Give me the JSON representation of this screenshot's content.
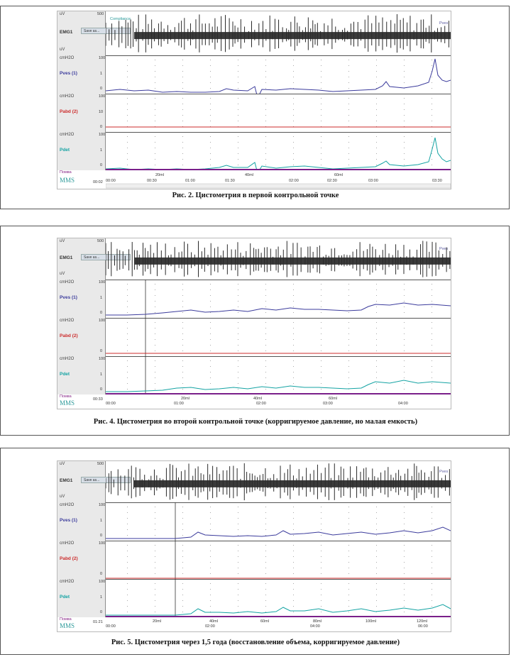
{
  "figures": [
    {
      "caption": "Рис. 2. Цистометрия в первой контрольной точке",
      "emg": {
        "label": "EMG1",
        "top_value": "500",
        "unit_top": "uV",
        "unit_bottom": "uV",
        "save_button": "Save as...",
        "tag": "Compliance",
        "tag_right": "Pves"
      },
      "channels": [
        {
          "name": "Pves (1)",
          "unit": "cmH2O",
          "ticks": [
            "100",
            "1",
            "0"
          ],
          "color": "#3b3b9c"
        },
        {
          "name": "Pabd (2)",
          "unit": "cmH2O",
          "ticks": [
            "100",
            "10",
            "0"
          ],
          "color": "#cc2b2b"
        },
        {
          "name": "Pdet",
          "unit": "cmH2O",
          "ticks": [
            "100",
            "1",
            "0"
          ],
          "color": "#14a3a3"
        }
      ],
      "pomva_label": "Помва",
      "logo": "MMS",
      "elapsed": "00:02",
      "start_time": "00:00",
      "volume_marks": [
        "20ml",
        "40ml",
        "60ml"
      ],
      "time_marks": [
        "00:30",
        "01:00",
        "01:30",
        "02:00",
        "02:30",
        "03:00",
        "03:30"
      ]
    },
    {
      "caption": "Рис. 4. Цистометрия во второй контрольной точке (корригируемое давление, но малая емкость)",
      "emg": {
        "label": "EMG1",
        "top_value": "500",
        "unit_top": "uV",
        "unit_bottom": "uV",
        "save_button": "Save as...",
        "tag": "",
        "tag_right": "Pves"
      },
      "channels": [
        {
          "name": "Pves (1)",
          "unit": "cmH2O",
          "ticks": [
            "100",
            "1",
            "0"
          ],
          "color": "#3b3b9c"
        },
        {
          "name": "Pabd (2)",
          "unit": "cmH2O",
          "ticks": [
            "100",
            "",
            "0"
          ],
          "color": "#cc2b2b"
        },
        {
          "name": "Pdet",
          "unit": "cmH2O",
          "ticks": [
            "100",
            "1",
            "0"
          ],
          "color": "#14a3a3"
        }
      ],
      "pomva_label": "Помва",
      "logo": "MMS",
      "elapsed": "00:33",
      "start_time": "00:00",
      "volume_marks": [
        "20ml",
        "40ml",
        "60ml"
      ],
      "time_marks": [
        "01:00",
        "02:00",
        "03:00",
        "04:00"
      ]
    },
    {
      "caption": "Рис. 5. Цистометрия через 1,5 года (восстановление объема, корригируемое давление)",
      "emg": {
        "label": "EMG1",
        "top_value": "500",
        "unit_top": "uV",
        "unit_bottom": "uV",
        "save_button": "Save as...",
        "tag": "",
        "tag_right": "Pves"
      },
      "channels": [
        {
          "name": "Pves (1)",
          "unit": "cmH2O",
          "ticks": [
            "100",
            "1",
            "0"
          ],
          "color": "#3b3b9c"
        },
        {
          "name": "Pabd (2)",
          "unit": "cmH2O",
          "ticks": [
            "100",
            "",
            "0"
          ],
          "color": "#cc2b2b"
        },
        {
          "name": "Pdet",
          "unit": "cmH2O",
          "ticks": [
            "100",
            "1",
            "0"
          ],
          "color": "#14a3a3"
        }
      ],
      "pomva_label": "Помва",
      "logo": "MMS",
      "elapsed": "01:21",
      "start_time": "00:00",
      "volume_marks": [
        "20ml",
        "40ml",
        "60ml",
        "80ml",
        "100ml",
        "120ml"
      ],
      "time_marks": [
        "02:00",
        "04:00",
        "06:00"
      ]
    }
  ]
}
